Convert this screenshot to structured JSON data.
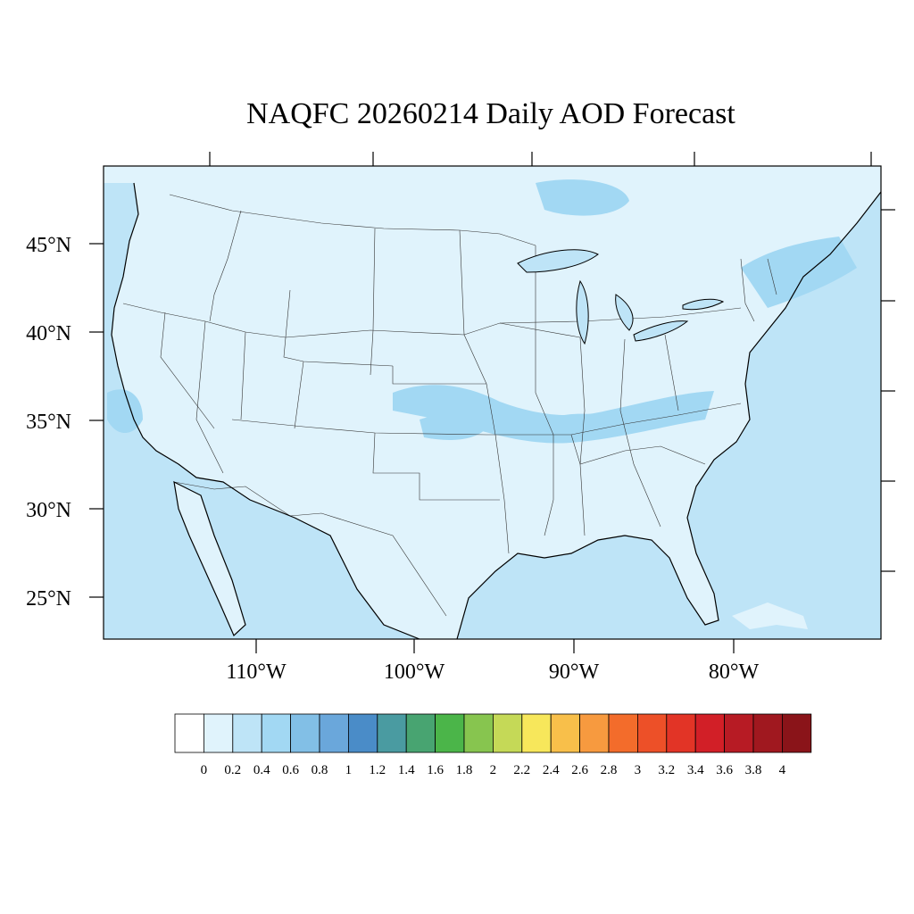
{
  "title": "NAQFC 20260214 Daily AOD Forecast",
  "map": {
    "lat_labels": [
      "45°N",
      "40°N",
      "35°N",
      "30°N",
      "25°N"
    ],
    "lon_labels": [
      "110°W",
      "100°W",
      "90°W",
      "80°W"
    ],
    "ocean_color": "#bee4f7",
    "land_color": "#e0f3fc",
    "plume_color": "#a2d8f3"
  },
  "colorbar": {
    "labels": [
      "0",
      "0.2",
      "0.4",
      "0.6",
      "0.8",
      "1",
      "1.2",
      "1.4",
      "1.6",
      "1.8",
      "2",
      "2.2",
      "2.4",
      "2.6",
      "2.8",
      "3",
      "3.2",
      "3.4",
      "3.6",
      "3.8",
      "4"
    ],
    "colors": [
      "#ffffff",
      "#e0f3fc",
      "#bee4f7",
      "#a2d8f3",
      "#82bfe6",
      "#6aa7db",
      "#4a8cc8",
      "#4a9ba1",
      "#48a471",
      "#4bb549",
      "#87c54f",
      "#c5d957",
      "#f7e75b",
      "#f8bf4a",
      "#f79a3f",
      "#f36c2b",
      "#ed5028",
      "#e23426",
      "#d21f27",
      "#b71b24",
      "#a0181f",
      "#8a1419"
    ]
  }
}
